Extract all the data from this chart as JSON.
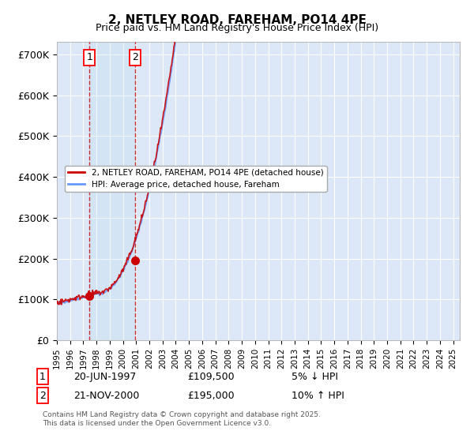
{
  "title": "2, NETLEY ROAD, FAREHAM, PO14 4PE",
  "subtitle": "Price paid vs. HM Land Registry's House Price Index (HPI)",
  "ylim": [
    0,
    730000
  ],
  "yticks": [
    0,
    100000,
    200000,
    300000,
    400000,
    500000,
    600000,
    700000
  ],
  "ytick_labels": [
    "£0",
    "£100K",
    "£200K",
    "£300K",
    "£400K",
    "£500K",
    "£600K",
    "£700K"
  ],
  "background_color": "#ffffff",
  "plot_bg_color": "#dce8f8",
  "grid_color": "#ffffff",
  "hpi_color": "#6699ff",
  "price_color": "#cc0000",
  "sale1_date": 1997.47,
  "sale1_price": 109500,
  "sale2_date": 2000.9,
  "sale2_price": 195000,
  "legend_entry1": "2, NETLEY ROAD, FAREHAM, PO14 4PE (detached house)",
  "legend_entry2": "HPI: Average price, detached house, Fareham",
  "footer": "Contains HM Land Registry data © Crown copyright and database right 2025.\nThis data is licensed under the Open Government Licence v3.0.",
  "table_row1": [
    "1",
    "20-JUN-1997",
    "£109,500",
    "5% ↓ HPI"
  ],
  "table_row2": [
    "2",
    "21-NOV-2000",
    "£195,000",
    "10% ↑ HPI"
  ],
  "xstart": 1995.0,
  "xend": 2025.5
}
